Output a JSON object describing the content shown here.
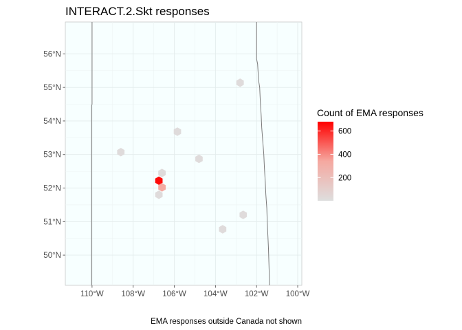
{
  "chart_data": {
    "type": "hexbin-map",
    "title": "INTERACT.2.Skt responses",
    "caption": "EMA responses outside Canada not shown",
    "xlabel": "",
    "ylabel": "",
    "xlim": [
      -111.3,
      -99.8
    ],
    "ylim": [
      49.1,
      56.95
    ],
    "x_ticks": [
      -110,
      -108,
      -106,
      -104,
      -102,
      -100
    ],
    "x_tick_labels": [
      "110°W",
      "108°W",
      "106°W",
      "104°W",
      "102°W",
      "100°W"
    ],
    "y_ticks": [
      50,
      51,
      52,
      53,
      54,
      55,
      56
    ],
    "y_tick_labels": [
      "50°N",
      "51°N",
      "52°N",
      "53°N",
      "54°N",
      "55°N",
      "56°N"
    ],
    "grid": true,
    "background": "#f7ffff",
    "legend": {
      "title": "Count of EMA responses",
      "position": "right",
      "breaks": [
        200,
        400,
        600
      ],
      "break_labels": [
        "200",
        "400",
        "600"
      ],
      "range": [
        1,
        680
      ],
      "color_low": "#dedede",
      "color_high": "#ff0000"
    },
    "boundaries": [
      {
        "name": "Alberta–Saskatchewan border",
        "points": [
          [
            -110.0,
            56.95
          ],
          [
            -110.0,
            54.5
          ],
          [
            -110.02,
            54.45
          ],
          [
            -110.02,
            49.1
          ]
        ]
      },
      {
        "name": "Saskatchewan–Manitoba border",
        "points": [
          [
            -102.0,
            56.95
          ],
          [
            -102.0,
            55.85
          ],
          [
            -101.95,
            55.7
          ],
          [
            -101.9,
            55.2
          ],
          [
            -101.85,
            55.0
          ],
          [
            -101.82,
            54.6
          ],
          [
            -101.78,
            54.2
          ],
          [
            -101.75,
            53.8
          ],
          [
            -101.7,
            53.4
          ],
          [
            -101.65,
            53.0
          ],
          [
            -101.62,
            52.6
          ],
          [
            -101.58,
            52.2
          ],
          [
            -101.55,
            51.8
          ],
          [
            -101.5,
            51.4
          ],
          [
            -101.48,
            51.0
          ],
          [
            -101.45,
            50.6
          ],
          [
            -101.42,
            50.2
          ],
          [
            -101.4,
            49.8
          ],
          [
            -101.38,
            49.4
          ],
          [
            -101.37,
            49.1
          ]
        ]
      }
    ],
    "points": [
      {
        "lon": -108.6,
        "lat": 53.07,
        "count": 20
      },
      {
        "lon": -106.75,
        "lat": 52.22,
        "count": 660
      },
      {
        "lon": -106.6,
        "lat": 52.02,
        "count": 330
      },
      {
        "lon": -106.6,
        "lat": 52.45,
        "count": 20
      },
      {
        "lon": -106.75,
        "lat": 51.8,
        "count": 20
      },
      {
        "lon": -105.85,
        "lat": 53.68,
        "count": 20
      },
      {
        "lon": -104.8,
        "lat": 52.87,
        "count": 20
      },
      {
        "lon": -102.8,
        "lat": 55.14,
        "count": 20
      },
      {
        "lon": -103.65,
        "lat": 50.77,
        "count": 20
      },
      {
        "lon": -102.65,
        "lat": 51.2,
        "count": 20
      }
    ]
  }
}
